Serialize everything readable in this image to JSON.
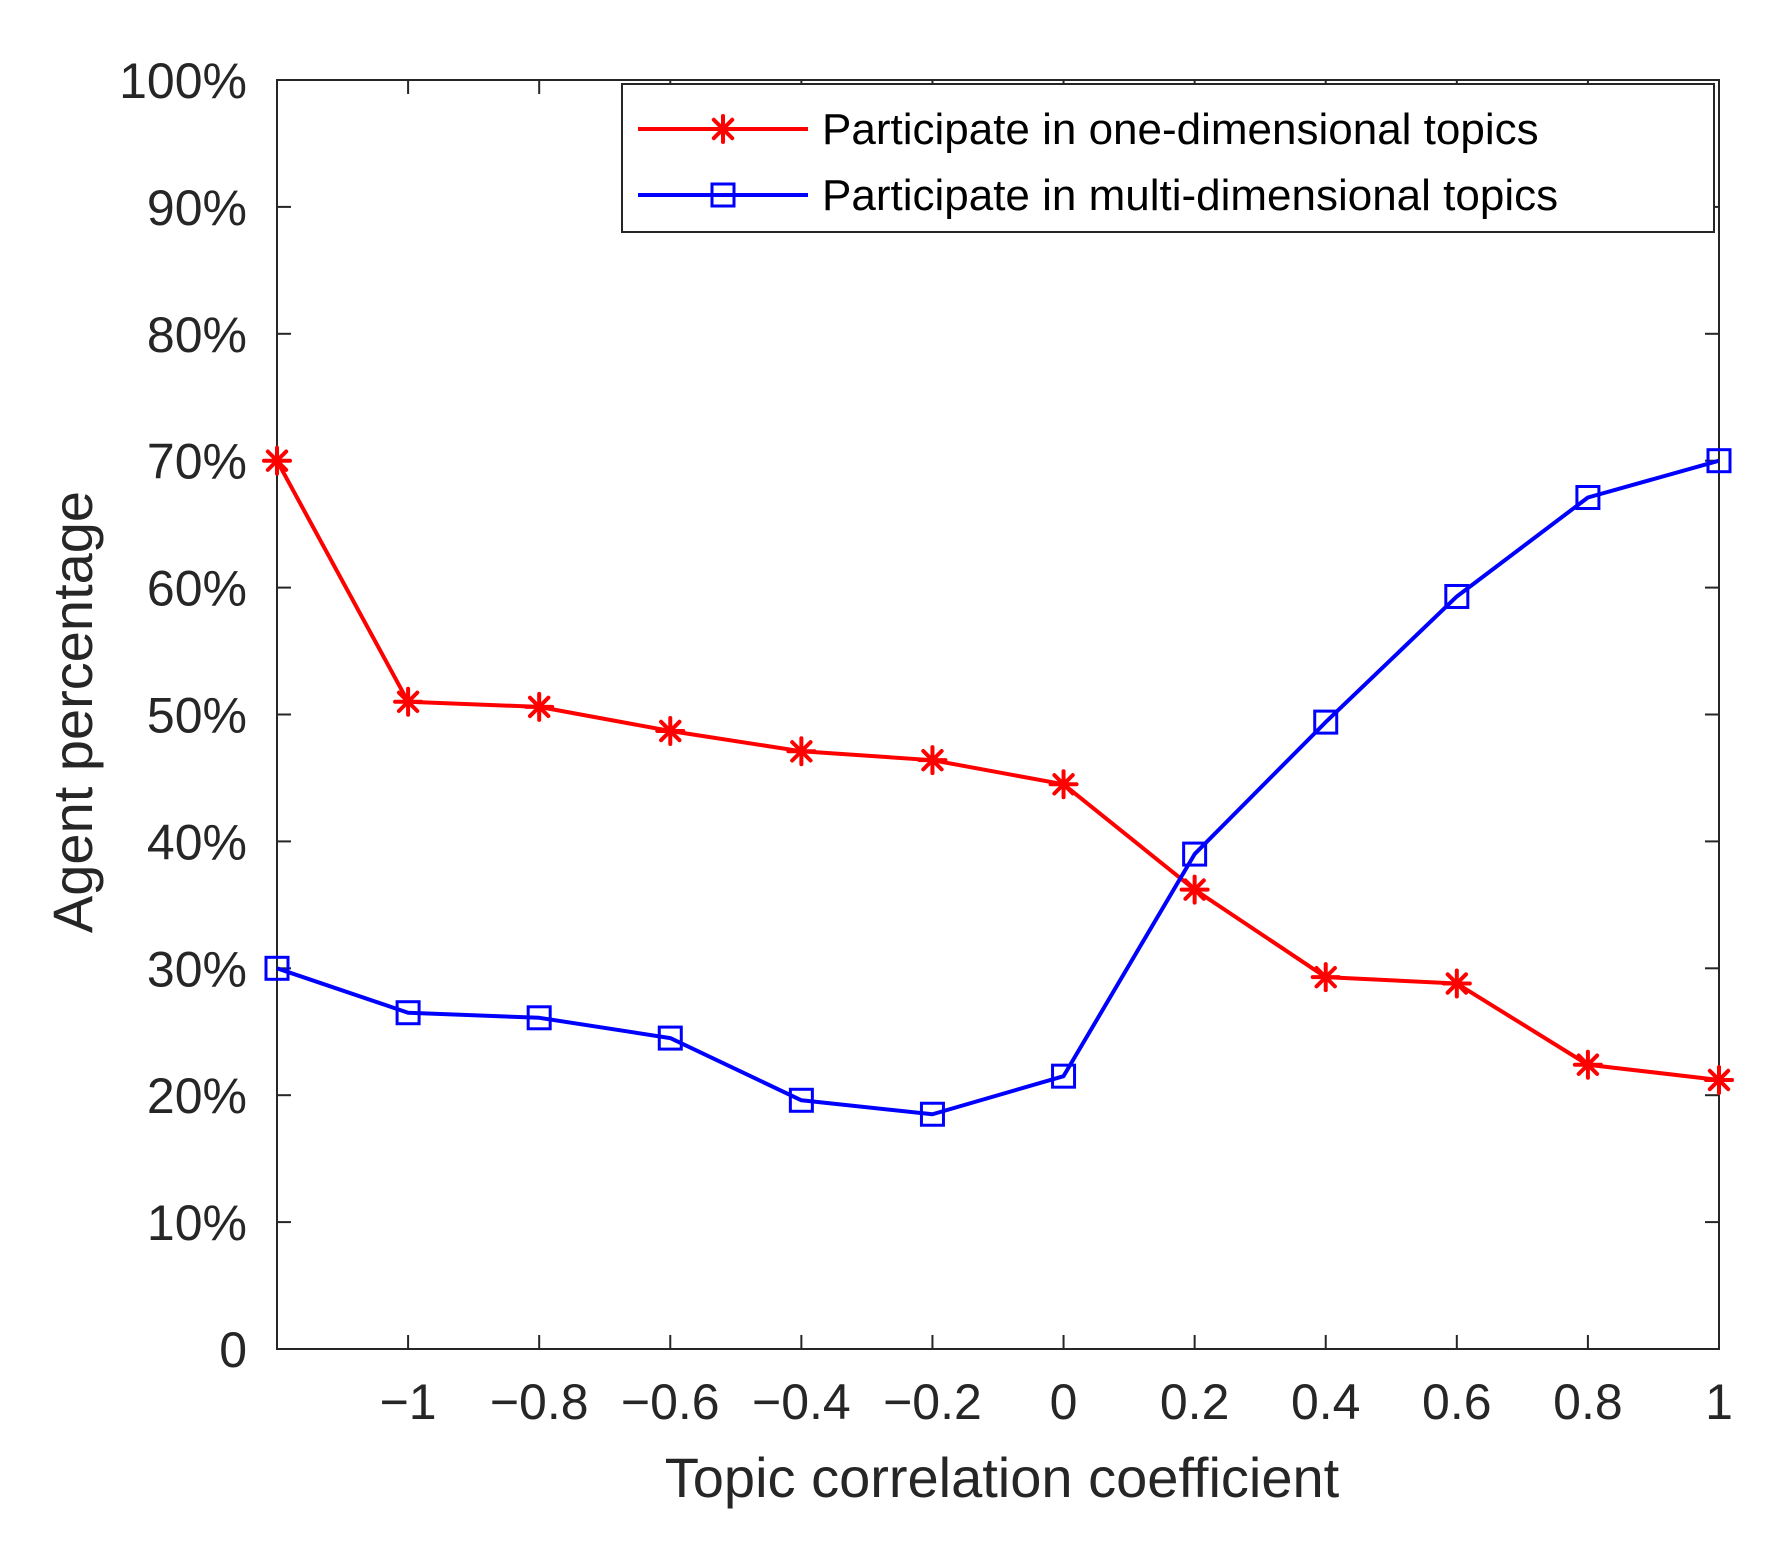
{
  "chart_data": {
    "type": "line",
    "title": "",
    "xlabel": "Topic correlation coefficient",
    "ylabel": "Agent percentage",
    "x": [
      -1.2,
      -1,
      -0.8,
      -0.6,
      -0.4,
      -0.2,
      0,
      0.2,
      0.4,
      0.6,
      0.8,
      1
    ],
    "xlim": [
      -1.2,
      1
    ],
    "ylim": [
      0,
      100
    ],
    "xticks": [
      {
        "value": -1,
        "label": "−1"
      },
      {
        "value": -0.8,
        "label": "−0.8"
      },
      {
        "value": -0.6,
        "label": "−0.6"
      },
      {
        "value": -0.4,
        "label": "−0.4"
      },
      {
        "value": -0.2,
        "label": "−0.2"
      },
      {
        "value": 0,
        "label": "0"
      },
      {
        "value": 0.2,
        "label": "0.2"
      },
      {
        "value": 0.4,
        "label": "0.4"
      },
      {
        "value": 0.6,
        "label": "0.6"
      },
      {
        "value": 0.8,
        "label": "0.8"
      },
      {
        "value": 1,
        "label": "1"
      }
    ],
    "yticks": [
      {
        "value": 0,
        "label": "0"
      },
      {
        "value": 10,
        "label": "10%"
      },
      {
        "value": 20,
        "label": "20%"
      },
      {
        "value": 30,
        "label": "30%"
      },
      {
        "value": 40,
        "label": "40%"
      },
      {
        "value": 50,
        "label": "50%"
      },
      {
        "value": 60,
        "label": "60%"
      },
      {
        "value": 70,
        "label": "70%"
      },
      {
        "value": 80,
        "label": "80%"
      },
      {
        "value": 90,
        "label": "90%"
      },
      {
        "value": 100,
        "label": "100%"
      }
    ],
    "grid": false,
    "legend": "top-right",
    "series": [
      {
        "name": "Participate in one-dimensional topics",
        "color": "#ff0000",
        "marker": "asterisk",
        "values": [
          70,
          51,
          50.6,
          48.7,
          47.1,
          46.4,
          44.5,
          36.2,
          29.3,
          28.8,
          22.4,
          21.2
        ]
      },
      {
        "name": "Participate in multi-dimensional topics",
        "color": "#0000ff",
        "marker": "square",
        "values": [
          30,
          26.5,
          26.1,
          24.5,
          19.6,
          18.5,
          21.5,
          39,
          49.4,
          59.3,
          67.1,
          70
        ]
      }
    ]
  }
}
